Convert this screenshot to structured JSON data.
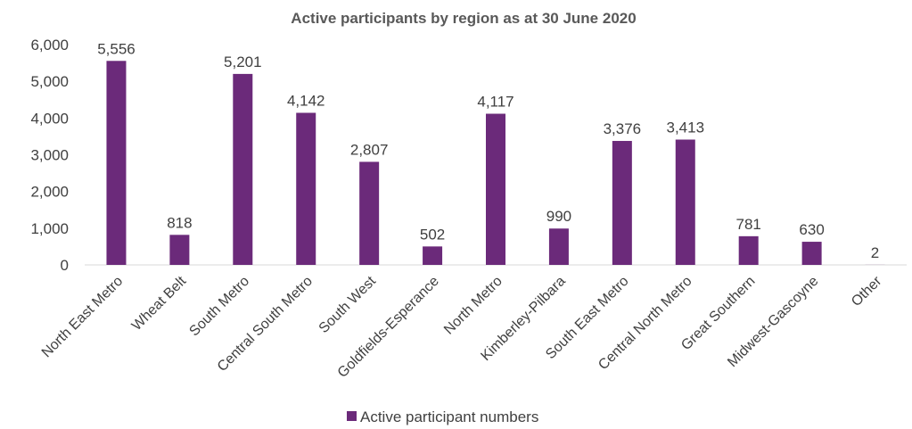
{
  "chart_data": {
    "type": "bar",
    "title": "Active participants by region as at 30 June 2020",
    "categories": [
      "North East Metro",
      "Wheat Belt",
      "South Metro",
      "Central South Metro",
      "South West",
      "Goldfields-Esperance",
      "North Metro",
      "Kimberley-Pilbara",
      "South East Metro",
      "Central North Metro",
      "Great Southern",
      "Midwest-Gascoyne",
      "Other"
    ],
    "series": [
      {
        "name": "Active participant numbers",
        "values": [
          5556,
          818,
          5201,
          4142,
          2807,
          502,
          4117,
          990,
          3376,
          3413,
          781,
          630,
          2
        ],
        "labels": [
          "5,556",
          "818",
          "5,201",
          "4,142",
          "2,807",
          "502",
          "4,117",
          "990",
          "3,376",
          "3,413",
          "781",
          "630",
          "2"
        ]
      }
    ],
    "yticks": [
      "0",
      "1,000",
      "2,000",
      "3,000",
      "4,000",
      "5,000",
      "6,000"
    ],
    "ylim": [
      0,
      6000
    ],
    "ystep": 1000,
    "grid": false,
    "legend": "bottom",
    "bar_color": "#6b2a7a"
  }
}
